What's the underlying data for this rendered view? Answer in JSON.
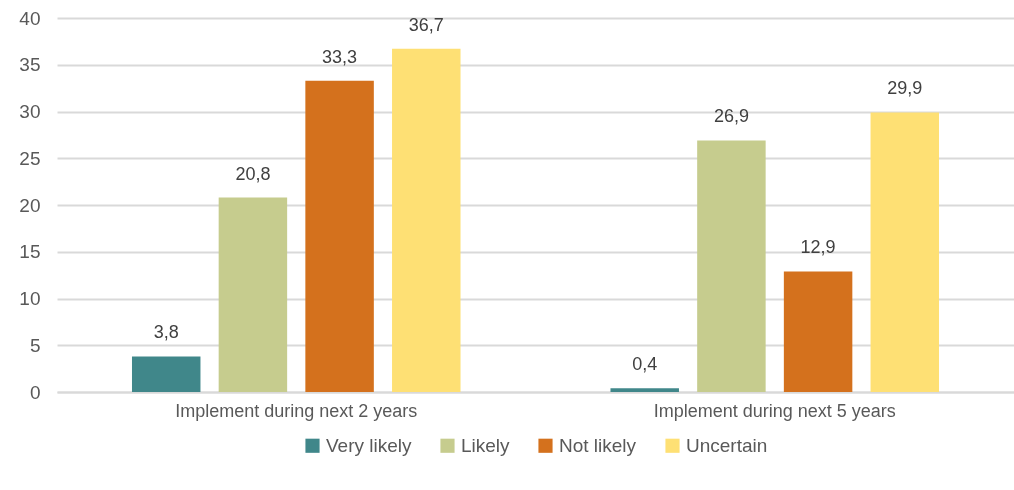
{
  "chart_data": {
    "type": "bar",
    "categories": [
      "Implement during next 2 years",
      "Implement during next 5 years"
    ],
    "series": [
      {
        "name": "Very likely",
        "color": "#40878a",
        "values": [
          3.8,
          0.4
        ],
        "value_labels": [
          "3,8",
          "0,4"
        ]
      },
      {
        "name": "Likely",
        "color": "#c6cc8e",
        "values": [
          20.8,
          26.9
        ],
        "value_labels": [
          "20,8",
          "26,9"
        ]
      },
      {
        "name": "Not likely",
        "color": "#d4711d",
        "values": [
          33.3,
          12.9
        ],
        "value_labels": [
          "33,3",
          "12,9"
        ]
      },
      {
        "name": "Uncertain",
        "color": "#fee074",
        "values": [
          36.7,
          29.9
        ],
        "value_labels": [
          "36,7",
          "29,9"
        ]
      }
    ],
    "ylim": [
      0,
      40
    ],
    "yticks": [
      0,
      5,
      10,
      15,
      20,
      25,
      30,
      35,
      40
    ],
    "grid": "y",
    "legend": "bottom"
  }
}
